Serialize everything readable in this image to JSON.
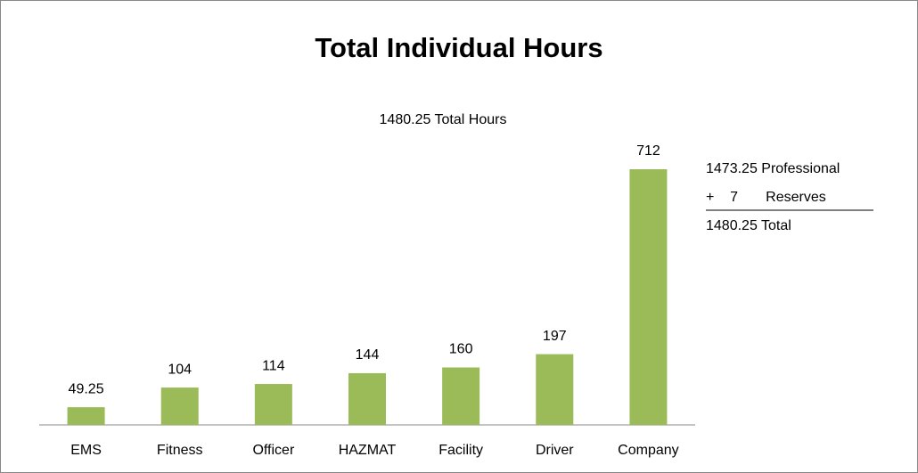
{
  "chart_data": {
    "type": "bar",
    "title": "Total Individual Hours",
    "subtitle": "1480.25 Total Hours",
    "categories": [
      "EMS",
      "Fitness",
      "Officer",
      "HAZMAT",
      "Facility",
      "Driver",
      "Company"
    ],
    "values": [
      49.25,
      104,
      114,
      144,
      160,
      197,
      712
    ],
    "color": "#9bbb59",
    "annotations": [
      "1473.25 Professional",
      "+    7       Reserves",
      "1480.25 Total"
    ]
  }
}
